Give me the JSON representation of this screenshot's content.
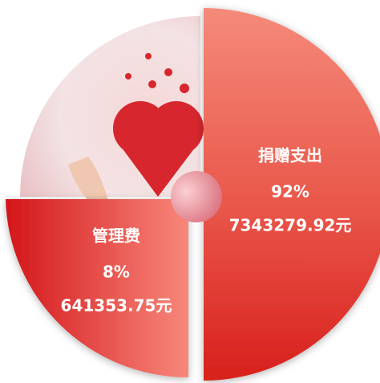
{
  "chart_data": {
    "type": "pie",
    "categories": [
      "捐赠支出",
      "管理费"
    ],
    "values": [
      92,
      8
    ],
    "value_labels": [
      "92%",
      "8%"
    ],
    "amount_labels": [
      "7343279.92元",
      "641353.75元"
    ],
    "colors": [
      "#e23a35",
      "#d91f22"
    ]
  }
}
